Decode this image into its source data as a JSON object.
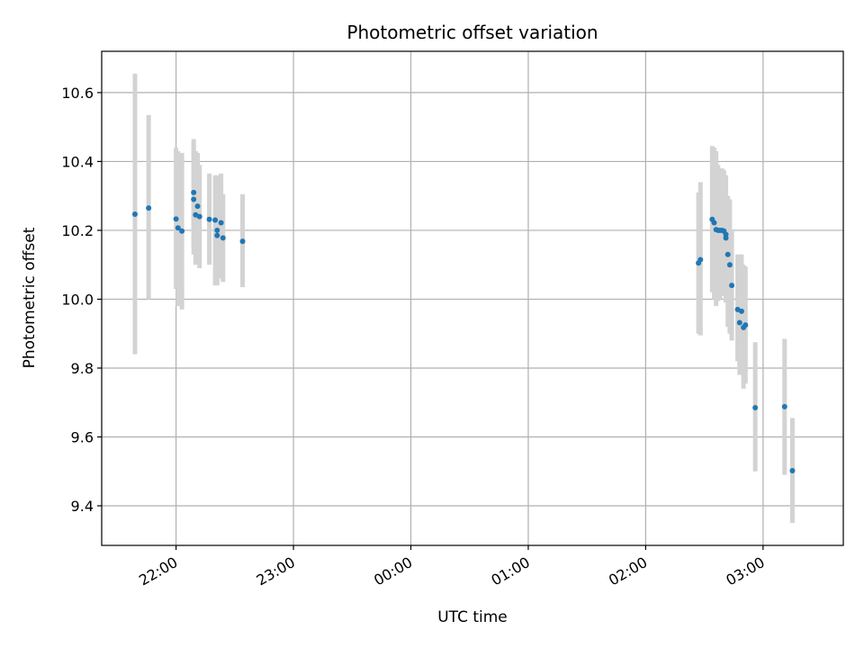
{
  "chart_data": {
    "type": "scatter",
    "title": "Photometric offset variation",
    "xlabel": "UTC time",
    "ylabel": "Photometric offset",
    "x_axis_kind": "time",
    "xlim": [
      "21:22",
      "03:41"
    ],
    "ylim": [
      9.285,
      10.72
    ],
    "x_ticks": [
      "22:00",
      "23:00",
      "00:00",
      "01:00",
      "02:00",
      "03:00"
    ],
    "y_ticks": [
      9.4,
      9.6,
      9.8,
      10.0,
      10.2,
      10.4,
      10.6
    ],
    "grid": true,
    "colors": {
      "point": "#1f77b4",
      "errorbar": "#d3d3d3",
      "grid": "#b0b0b0"
    },
    "points": [
      {
        "x": "21:39",
        "y": 10.247,
        "err_low": 9.84,
        "err_high": 10.655
      },
      {
        "x": "21:46",
        "y": 10.265,
        "err_low": 10.0,
        "err_high": 10.535
      },
      {
        "x": "22:00",
        "y": 10.233,
        "err_low": 10.03,
        "err_high": 10.44
      },
      {
        "x": "22:01",
        "y": 10.207,
        "err_low": 9.98,
        "err_high": 10.43
      },
      {
        "x": "22:03",
        "y": 10.198,
        "err_low": 9.97,
        "err_high": 10.425
      },
      {
        "x": "22:09",
        "y": 10.31,
        "err_low": 10.15,
        "err_high": 10.465
      },
      {
        "x": "22:09",
        "y": 10.29,
        "err_low": 10.13,
        "err_high": 10.455
      },
      {
        "x": "22:10",
        "y": 10.245,
        "err_low": 10.1,
        "err_high": 10.43
      },
      {
        "x": "22:11",
        "y": 10.27,
        "err_low": 10.12,
        "err_high": 10.425
      },
      {
        "x": "22:12",
        "y": 10.24,
        "err_low": 10.09,
        "err_high": 10.39
      },
      {
        "x": "22:17",
        "y": 10.232,
        "err_low": 10.1,
        "err_high": 10.365
      },
      {
        "x": "22:20",
        "y": 10.23,
        "err_low": 10.04,
        "err_high": 10.36
      },
      {
        "x": "22:21",
        "y": 10.2,
        "err_low": 10.04,
        "err_high": 10.36
      },
      {
        "x": "22:21",
        "y": 10.185,
        "err_low": 10.045,
        "err_high": 10.34
      },
      {
        "x": "22:23",
        "y": 10.222,
        "err_low": 10.06,
        "err_high": 10.365
      },
      {
        "x": "22:24",
        "y": 10.178,
        "err_low": 10.05,
        "err_high": 10.305
      },
      {
        "x": "22:34",
        "y": 10.168,
        "err_low": 10.035,
        "err_high": 10.305
      },
      {
        "x": "02:27",
        "y": 10.105,
        "err_low": 9.9,
        "err_high": 10.31
      },
      {
        "x": "02:28",
        "y": 10.115,
        "err_low": 9.895,
        "err_high": 10.34
      },
      {
        "x": "02:34",
        "y": 10.232,
        "err_low": 10.02,
        "err_high": 10.445
      },
      {
        "x": "02:35",
        "y": 10.222,
        "err_low": 10.0,
        "err_high": 10.44
      },
      {
        "x": "02:36",
        "y": 10.202,
        "err_low": 9.98,
        "err_high": 10.43
      },
      {
        "x": "02:37",
        "y": 10.2,
        "err_low": 9.995,
        "err_high": 10.39
      },
      {
        "x": "02:38",
        "y": 10.2,
        "err_low": 10.0,
        "err_high": 10.38
      },
      {
        "x": "02:39",
        "y": 10.2,
        "err_low": 10.01,
        "err_high": 10.38
      },
      {
        "x": "02:40",
        "y": 10.198,
        "err_low": 10.01,
        "err_high": 10.375
      },
      {
        "x": "02:41",
        "y": 10.178,
        "err_low": 10.0,
        "err_high": 10.36
      },
      {
        "x": "02:41",
        "y": 10.188,
        "err_low": 9.99,
        "err_high": 10.31
      },
      {
        "x": "02:42",
        "y": 10.13,
        "err_low": 9.92,
        "err_high": 10.3
      },
      {
        "x": "02:43",
        "y": 10.1,
        "err_low": 9.9,
        "err_high": 10.29
      },
      {
        "x": "02:44",
        "y": 10.04,
        "err_low": 9.88,
        "err_high": 10.2
      },
      {
        "x": "02:47",
        "y": 9.97,
        "err_low": 9.82,
        "err_high": 10.13
      },
      {
        "x": "02:48",
        "y": 9.932,
        "err_low": 9.78,
        "err_high": 10.13
      },
      {
        "x": "02:49",
        "y": 9.965,
        "err_low": 9.79,
        "err_high": 10.13
      },
      {
        "x": "02:50",
        "y": 9.918,
        "err_low": 9.74,
        "err_high": 10.1
      },
      {
        "x": "02:51",
        "y": 9.925,
        "err_low": 9.755,
        "err_high": 10.095
      },
      {
        "x": "02:56",
        "y": 9.685,
        "err_low": 9.5,
        "err_high": 9.875
      },
      {
        "x": "03:11",
        "y": 9.688,
        "err_low": 9.49,
        "err_high": 9.885
      },
      {
        "x": "03:15",
        "y": 9.502,
        "err_low": 9.35,
        "err_high": 9.655
      }
    ]
  }
}
